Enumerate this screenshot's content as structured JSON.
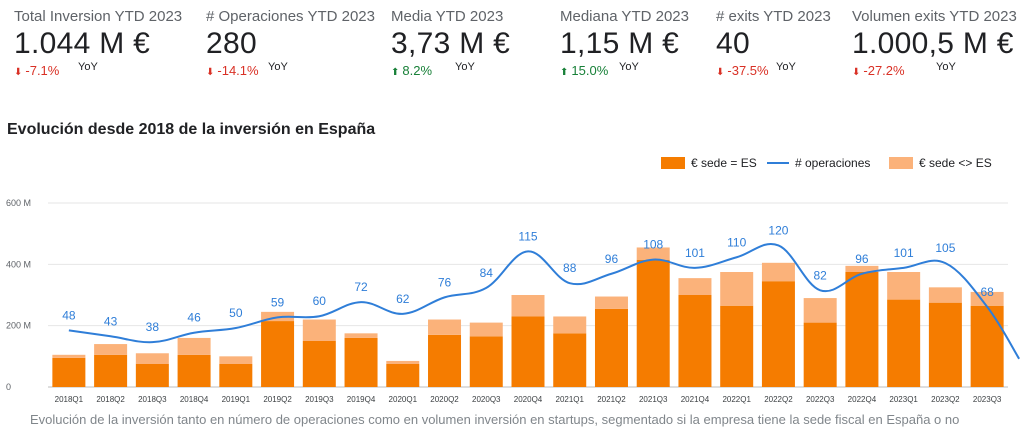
{
  "kpis": [
    {
      "title": "Total Inversion YTD 2023",
      "value": "1.044 M €",
      "delta": "-7.1%",
      "direction": "down",
      "period": "YoY"
    },
    {
      "title": "# Operaciones YTD 2023",
      "value": "280",
      "delta": "-14.1%",
      "direction": "down",
      "period": "YoY"
    },
    {
      "title": "Media YTD 2023",
      "value": "3,73 M €",
      "delta": "8.2%",
      "direction": "up",
      "period": "YoY"
    },
    {
      "title": "Mediana YTD 2023",
      "value": "1,15 M €",
      "delta": "15.0%",
      "direction": "up",
      "period": "YoY"
    },
    {
      "title": "# exits YTD 2023",
      "value": "40",
      "delta": "-37.5%",
      "direction": "down",
      "period": "YoY"
    },
    {
      "title": "Volumen exits YTD 2023",
      "value": "1.000,5 M €",
      "delta": "-27.2%",
      "direction": "down",
      "period": "YoY"
    }
  ],
  "arrows": {
    "up": "⬆",
    "down": "⬇"
  },
  "section_title": "Evolución desde 2018 de la inversión en España",
  "caption": "Evolución de la inversión tanto en número de operaciones como en volumen inversión en startups, segmentado si la empresa tiene la sede fiscal en España o no",
  "colors": {
    "sede_es": "#f57c00",
    "sede_no_es": "#fbb27a",
    "line": "#2f7ed8",
    "grid": "#e6e6e6",
    "axis_text": "#5f6368"
  },
  "chart_data": {
    "type": "bar",
    "stacked": true,
    "categories": [
      "2018Q1",
      "2018Q2",
      "2018Q3",
      "2018Q4",
      "2019Q1",
      "2019Q2",
      "2019Q3",
      "2019Q4",
      "2020Q1",
      "2020Q2",
      "2020Q3",
      "2020Q4",
      "2021Q1",
      "2021Q2",
      "2021Q3",
      "2021Q4",
      "2022Q1",
      "2022Q2",
      "2022Q3",
      "2022Q4",
      "2023Q1",
      "2023Q2",
      "2023Q3"
    ],
    "series": [
      {
        "name": "€ sede = ES",
        "values": [
          95,
          105,
          75,
          105,
          75,
          215,
          150,
          160,
          75,
          170,
          165,
          230,
          175,
          255,
          415,
          300,
          265,
          345,
          210,
          375,
          285,
          275,
          265
        ]
      },
      {
        "name": "€ sede <> ES",
        "values": [
          10,
          35,
          35,
          55,
          25,
          30,
          70,
          15,
          10,
          50,
          45,
          70,
          55,
          40,
          40,
          55,
          110,
          60,
          80,
          20,
          90,
          50,
          45
        ]
      },
      {
        "name": "# operaciones",
        "type": "line",
        "values": [
          48,
          43,
          38,
          46,
          50,
          59,
          60,
          72,
          62,
          76,
          84,
          115,
          88,
          96,
          108,
          101,
          110,
          120,
          82,
          96,
          101,
          105,
          68
        ]
      }
    ],
    "ylim": [
      0,
      600
    ],
    "yticks": [
      "0",
      "200 M",
      "400 M",
      "600 M"
    ],
    "line_ylim": [
      0,
      156
    ],
    "legend": [
      "€ sede = ES",
      "# operaciones",
      "€ sede <> ES"
    ],
    "legend_position": "top-right"
  }
}
